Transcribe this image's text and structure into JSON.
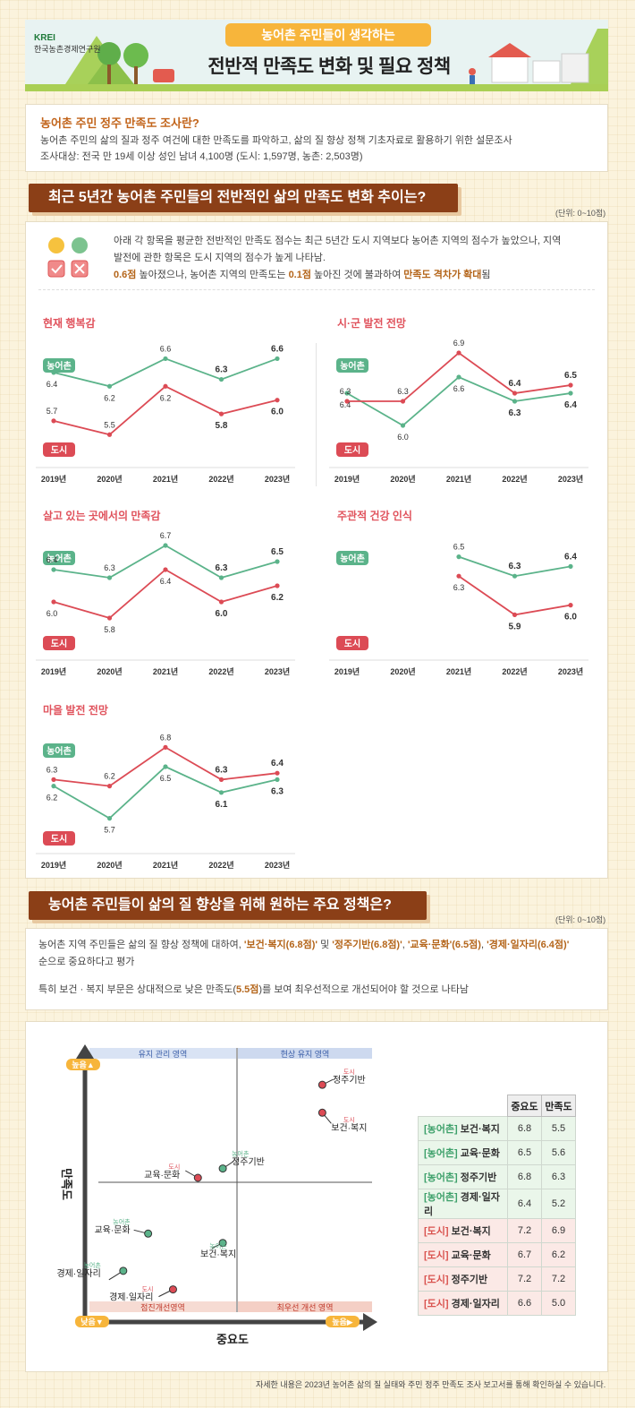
{
  "header": {
    "logo_en": "KREI",
    "logo_kr": "한국농촌경제연구원",
    "pill": "농어촌 주민들이 생각하는",
    "title": "전반적  만족도 변화 및 필요 정책"
  },
  "survey": {
    "title": "농어촌 주민 정주 만족도 조사란?",
    "line1": "농어촌 주민의 삶의 질과 정주 여건에 대한 만족도를 파악하고, 삶의 질 향상 정책 기초자료로 활용하기 위한 설문조사",
    "line2": "조사대상: 전국 만 19세 이상 성인 남녀 4,100명 (도시: 1,597명, 농촌: 2,503명)"
  },
  "section1": {
    "banner": "최근 5년간 농어촌 주민들의 전반적인 삶의 만족도 변화 추이는?",
    "unit": "(단위: 0~10점)",
    "desc1": "아래 각 항목을 평균한 전반적인 만족도 점수는 최근 5년간 도시 지역보다 농어촌 지역의 점수가 높았으나, 지역",
    "desc2": "발전에 관한 항목은 도시 지역의 점수가 높게 나타남.",
    "desc3a": "0.6점",
    "desc3b": " 높아졌으나, 농어촌 지역의 만족도는 ",
    "desc3c": "0.1점",
    "desc3d": " 높아진 것에 불과하여 ",
    "desc3e": "만족도 격차가 확대",
    "desc3f": "됨"
  },
  "legend": {
    "rural": "농어촌",
    "city": "도시"
  },
  "years": [
    "2019년",
    "2020년",
    "2021년",
    "2022년",
    "2023년"
  ],
  "chart_data": [
    {
      "type": "line",
      "title": "현재 행복감",
      "categories": [
        "2019년",
        "2020년",
        "2021년",
        "2022년",
        "2023년"
      ],
      "series": [
        {
          "name": "농어촌",
          "values": [
            6.4,
            6.2,
            6.6,
            6.3,
            6.6
          ]
        },
        {
          "name": "도시",
          "values": [
            5.7,
            5.5,
            6.2,
            5.8,
            6.0
          ]
        }
      ]
    },
    {
      "type": "line",
      "title": "시·군 발전 전망",
      "categories": [
        "2019년",
        "2020년",
        "2021년",
        "2022년",
        "2023년"
      ],
      "series": [
        {
          "name": "농어촌",
          "values": [
            6.4,
            6.0,
            6.6,
            6.3,
            6.4
          ]
        },
        {
          "name": "도시",
          "values": [
            6.3,
            6.3,
            6.9,
            6.4,
            6.5
          ]
        }
      ]
    },
    {
      "type": "line",
      "title": "살고 있는 곳에서의 만족감",
      "categories": [
        "2019년",
        "2020년",
        "2021년",
        "2022년",
        "2023년"
      ],
      "series": [
        {
          "name": "농어촌",
          "values": [
            6.4,
            6.3,
            6.7,
            6.3,
            6.5
          ]
        },
        {
          "name": "도시",
          "values": [
            6.0,
            5.8,
            6.4,
            6.0,
            6.2
          ]
        }
      ]
    },
    {
      "type": "line",
      "title": "주관적 건강 인식",
      "categories": [
        "2019년",
        "2020년",
        "2021년",
        "2022년",
        "2023년"
      ],
      "series": [
        {
          "name": "농어촌",
          "values": [
            null,
            null,
            6.5,
            6.3,
            6.4
          ]
        },
        {
          "name": "도시",
          "values": [
            null,
            null,
            6.3,
            5.9,
            6.0
          ]
        }
      ]
    },
    {
      "type": "line",
      "title": "마을 발전 전망",
      "categories": [
        "2019년",
        "2020년",
        "2021년",
        "2022년",
        "2023년"
      ],
      "series": [
        {
          "name": "농어촌",
          "values": [
            6.2,
            5.7,
            6.5,
            6.1,
            6.3
          ]
        },
        {
          "name": "도시",
          "values": [
            6.3,
            6.2,
            6.8,
            6.3,
            6.4
          ]
        }
      ]
    },
    {
      "type": "scatter",
      "xlabel": "중요도",
      "ylabel": "만족도",
      "quadrants": [
        "유지 관리 영역",
        "현상 유지 영역",
        "점진개선영역",
        "최우선 개선 영역"
      ],
      "axis_low": "낮음",
      "axis_high": "높음",
      "points": [
        {
          "group": "농어촌",
          "name": "보건·복지",
          "x": 6.8,
          "y": 5.5
        },
        {
          "group": "농어촌",
          "name": "교육·문화",
          "x": 6.5,
          "y": 5.6
        },
        {
          "group": "농어촌",
          "name": "정주기반",
          "x": 6.8,
          "y": 6.3
        },
        {
          "group": "농어촌",
          "name": "경제·일자리",
          "x": 6.4,
          "y": 5.2
        },
        {
          "group": "도시",
          "name": "보건·복지",
          "x": 7.2,
          "y": 6.9
        },
        {
          "group": "도시",
          "name": "교육·문화",
          "x": 6.7,
          "y": 6.2
        },
        {
          "group": "도시",
          "name": "정주기반",
          "x": 7.2,
          "y": 7.2
        },
        {
          "group": "도시",
          "name": "경제·일자리",
          "x": 6.6,
          "y": 5.0
        }
      ]
    }
  ],
  "section2": {
    "banner": "농어촌 주민들이 삶의 질 향상을 위해 원하는 주요 정책은?",
    "unit": "(단위: 0~10점)",
    "p1a": "농어촌 지역 주민들은 삶의 질 향상 정책에 대하여, ",
    "p1b": "'보건·복지(6.8점)'",
    "p1c": " 및 ",
    "p1d": "'정주기반(6.8점)'",
    "p1e": ", ",
    "p1f": "'교육·문화'(6.5점)",
    "p1g": ", ",
    "p1h": "'경제·일자리(6.4점)'",
    "p2": "순으로 중요하다고 평가",
    "p3a": "특히 보건 · 복지 부문은 상대적으로 낮은 만족도(",
    "p3b": "5.5점",
    "p3c": ")를 보여 최우선적으로 개선되어야 할 것으로 나타남"
  },
  "table": {
    "col_importance": "중요도",
    "col_satisfaction": "만족도",
    "rows": [
      {
        "tag": "[농어촌]",
        "name": "보건·복지",
        "imp": "6.8",
        "sat": "5.5"
      },
      {
        "tag": "[농어촌]",
        "name": "교육·문화",
        "imp": "6.5",
        "sat": "5.6"
      },
      {
        "tag": "[농어촌]",
        "name": "정주기반",
        "imp": "6.8",
        "sat": "6.3"
      },
      {
        "tag": "[농어촌]",
        "name": "경제·일자리",
        "imp": "6.4",
        "sat": "5.2"
      },
      {
        "tag": "[도시]",
        "name": "보건·복지",
        "imp": "7.2",
        "sat": "6.9"
      },
      {
        "tag": "[도시]",
        "name": "교육·문화",
        "imp": "6.7",
        "sat": "6.2"
      },
      {
        "tag": "[도시]",
        "name": "정주기반",
        "imp": "7.2",
        "sat": "7.2"
      },
      {
        "tag": "[도시]",
        "name": "경제·일자리",
        "imp": "6.6",
        "sat": "5.0"
      }
    ]
  },
  "footer": "자세한 내용은 2023년 농어촌 삶의 질 실태와 주민 정주 만족도 조사 보고서를 통해 확인하실 수 있습니다.",
  "colors": {
    "rural": "#5bb38a",
    "city": "#dc4b55",
    "brown": "#8b3f17",
    "orange": "#f7b53b"
  }
}
